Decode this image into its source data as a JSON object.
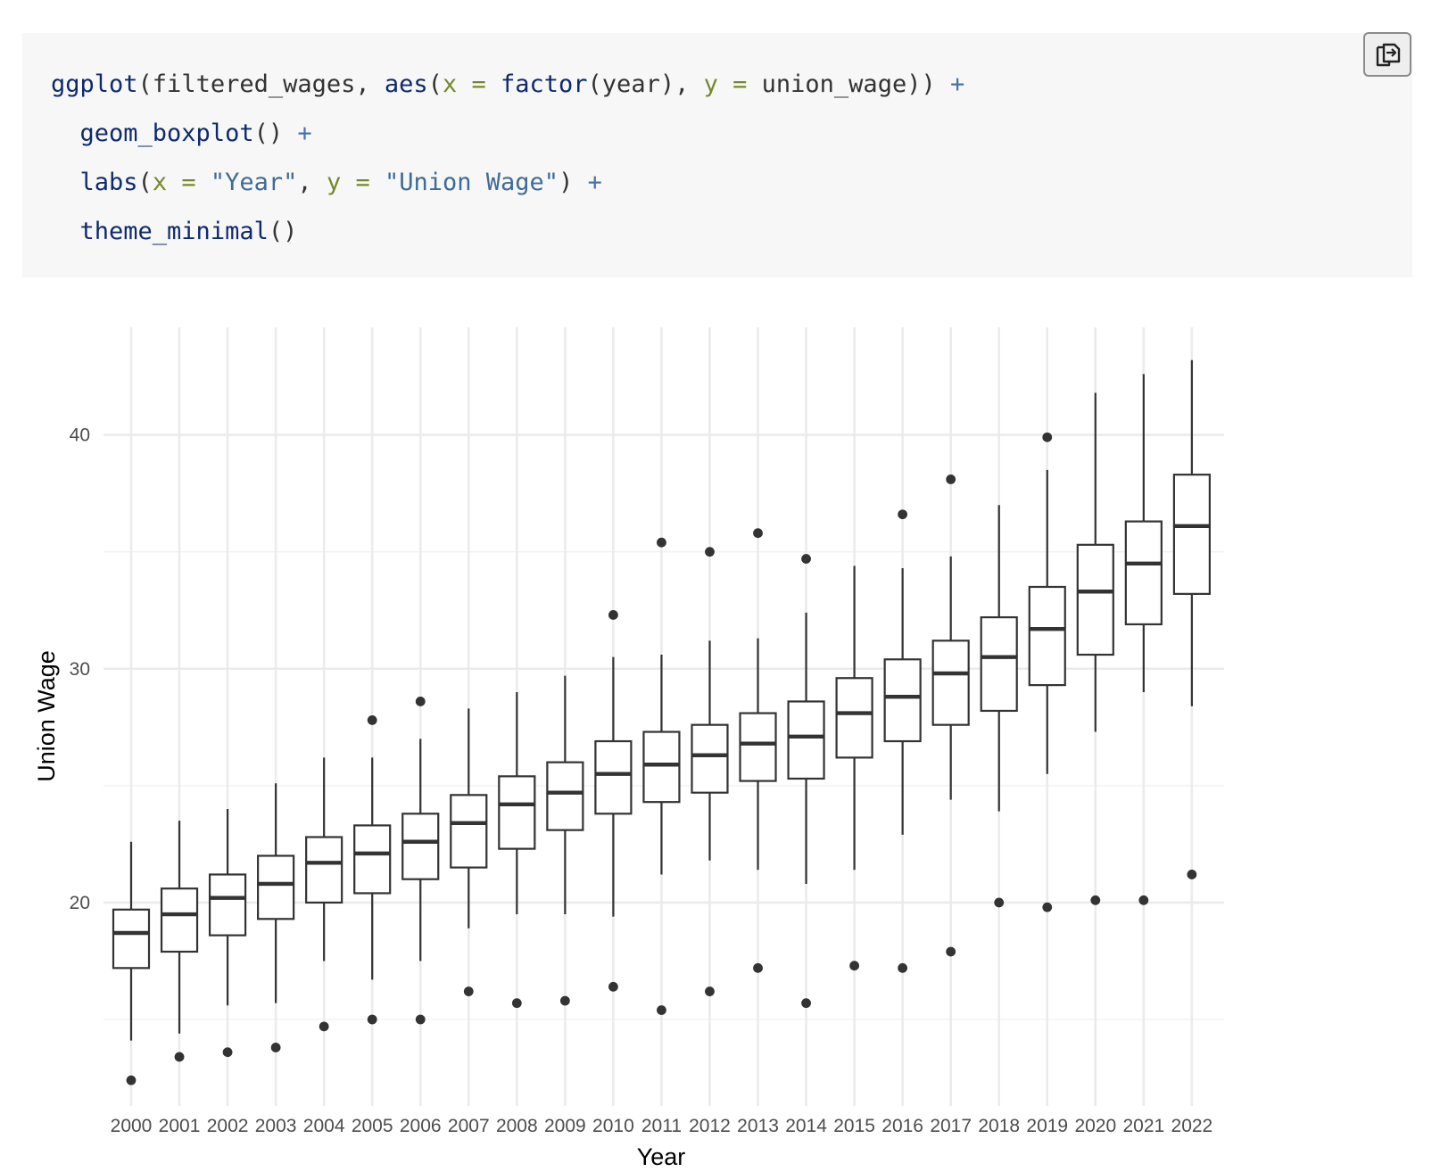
{
  "code": {
    "lines": [
      [
        {
          "cls": "fn",
          "text": "ggplot"
        },
        {
          "cls": "plain",
          "text": "(filtered_wages, "
        },
        {
          "cls": "fn",
          "text": "aes"
        },
        {
          "cls": "plain",
          "text": "("
        },
        {
          "cls": "arg",
          "text": "x"
        },
        {
          "cls": "plain",
          "text": " "
        },
        {
          "cls": "arg",
          "text": "="
        },
        {
          "cls": "plain",
          "text": " "
        },
        {
          "cls": "fn",
          "text": "factor"
        },
        {
          "cls": "plain",
          "text": "(year), "
        },
        {
          "cls": "arg",
          "text": "y"
        },
        {
          "cls": "plain",
          "text": " "
        },
        {
          "cls": "arg",
          "text": "="
        },
        {
          "cls": "plain",
          "text": " union_wage)) "
        },
        {
          "cls": "op",
          "text": "+"
        }
      ],
      [
        {
          "cls": "plain",
          "text": "  "
        },
        {
          "cls": "fn",
          "text": "geom_boxplot"
        },
        {
          "cls": "plain",
          "text": "() "
        },
        {
          "cls": "op",
          "text": "+"
        }
      ],
      [
        {
          "cls": "plain",
          "text": "  "
        },
        {
          "cls": "fn",
          "text": "labs"
        },
        {
          "cls": "plain",
          "text": "("
        },
        {
          "cls": "arg",
          "text": "x"
        },
        {
          "cls": "plain",
          "text": " "
        },
        {
          "cls": "arg",
          "text": "="
        },
        {
          "cls": "plain",
          "text": " "
        },
        {
          "cls": "str",
          "text": "\"Year\""
        },
        {
          "cls": "plain",
          "text": ", "
        },
        {
          "cls": "arg",
          "text": "y"
        },
        {
          "cls": "plain",
          "text": " "
        },
        {
          "cls": "arg",
          "text": "="
        },
        {
          "cls": "plain",
          "text": " "
        },
        {
          "cls": "str",
          "text": "\"Union Wage\""
        },
        {
          "cls": "plain",
          "text": ") "
        },
        {
          "cls": "op",
          "text": "+"
        }
      ],
      [
        {
          "cls": "plain",
          "text": "  "
        },
        {
          "cls": "fn",
          "text": "theme_minimal"
        },
        {
          "cls": "plain",
          "text": "()"
        }
      ]
    ]
  },
  "copy_button": {
    "icon": "copy-icon"
  },
  "chart_data": {
    "type": "boxplot",
    "xlabel": "Year",
    "ylabel": "Union Wage",
    "ylim": [
      11.3,
      44.6
    ],
    "y_ticks": [
      20,
      30,
      40
    ],
    "y_minor_ticks": [
      15,
      25,
      35
    ],
    "grid": true,
    "categories": [
      "2000",
      "2001",
      "2002",
      "2003",
      "2004",
      "2005",
      "2006",
      "2007",
      "2008",
      "2009",
      "2010",
      "2011",
      "2012",
      "2013",
      "2014",
      "2015",
      "2016",
      "2017",
      "2018",
      "2019",
      "2020",
      "2021",
      "2022"
    ],
    "boxes": [
      {
        "lower_whisker": 14.1,
        "q1": 17.2,
        "median": 18.7,
        "q3": 19.7,
        "upper_whisker": 22.6,
        "outliers": [
          12.4
        ]
      },
      {
        "lower_whisker": 14.4,
        "q1": 17.9,
        "median": 19.5,
        "q3": 20.6,
        "upper_whisker": 23.5,
        "outliers": [
          13.4
        ]
      },
      {
        "lower_whisker": 15.6,
        "q1": 18.6,
        "median": 20.2,
        "q3": 21.2,
        "upper_whisker": 24.0,
        "outliers": [
          13.6
        ]
      },
      {
        "lower_whisker": 15.7,
        "q1": 19.3,
        "median": 20.8,
        "q3": 22.0,
        "upper_whisker": 25.1,
        "outliers": [
          13.8
        ]
      },
      {
        "lower_whisker": 17.5,
        "q1": 20.0,
        "median": 21.7,
        "q3": 22.8,
        "upper_whisker": 26.2,
        "outliers": [
          14.7
        ]
      },
      {
        "lower_whisker": 16.7,
        "q1": 20.4,
        "median": 22.1,
        "q3": 23.3,
        "upper_whisker": 26.2,
        "outliers": [
          15.0,
          27.8
        ]
      },
      {
        "lower_whisker": 17.5,
        "q1": 21.0,
        "median": 22.6,
        "q3": 23.8,
        "upper_whisker": 27.0,
        "outliers": [
          15.0,
          28.6
        ]
      },
      {
        "lower_whisker": 18.9,
        "q1": 21.5,
        "median": 23.4,
        "q3": 24.6,
        "upper_whisker": 28.3,
        "outliers": [
          16.2
        ]
      },
      {
        "lower_whisker": 19.5,
        "q1": 22.3,
        "median": 24.2,
        "q3": 25.4,
        "upper_whisker": 29.0,
        "outliers": [
          15.7
        ]
      },
      {
        "lower_whisker": 19.5,
        "q1": 23.1,
        "median": 24.7,
        "q3": 26.0,
        "upper_whisker": 29.7,
        "outliers": [
          15.8
        ]
      },
      {
        "lower_whisker": 19.4,
        "q1": 23.8,
        "median": 25.5,
        "q3": 26.9,
        "upper_whisker": 30.5,
        "outliers": [
          16.4,
          32.3
        ]
      },
      {
        "lower_whisker": 21.2,
        "q1": 24.3,
        "median": 25.9,
        "q3": 27.3,
        "upper_whisker": 30.6,
        "outliers": [
          15.4,
          35.4
        ]
      },
      {
        "lower_whisker": 21.8,
        "q1": 24.7,
        "median": 26.3,
        "q3": 27.6,
        "upper_whisker": 31.2,
        "outliers": [
          16.2,
          35.0
        ]
      },
      {
        "lower_whisker": 21.4,
        "q1": 25.2,
        "median": 26.8,
        "q3": 28.1,
        "upper_whisker": 31.3,
        "outliers": [
          17.2,
          35.8
        ]
      },
      {
        "lower_whisker": 20.8,
        "q1": 25.3,
        "median": 27.1,
        "q3": 28.6,
        "upper_whisker": 32.4,
        "outliers": [
          15.7,
          34.7
        ]
      },
      {
        "lower_whisker": 21.4,
        "q1": 26.2,
        "median": 28.1,
        "q3": 29.6,
        "upper_whisker": 34.4,
        "outliers": [
          17.3
        ]
      },
      {
        "lower_whisker": 22.9,
        "q1": 26.9,
        "median": 28.8,
        "q3": 30.4,
        "upper_whisker": 34.3,
        "outliers": [
          17.2,
          36.6
        ]
      },
      {
        "lower_whisker": 24.4,
        "q1": 27.6,
        "median": 29.8,
        "q3": 31.2,
        "upper_whisker": 34.8,
        "outliers": [
          17.9,
          38.1
        ]
      },
      {
        "lower_whisker": 23.9,
        "q1": 28.2,
        "median": 30.5,
        "q3": 32.2,
        "upper_whisker": 37.0,
        "outliers": [
          20.0
        ]
      },
      {
        "lower_whisker": 25.5,
        "q1": 29.3,
        "median": 31.7,
        "q3": 33.5,
        "upper_whisker": 38.5,
        "outliers": [
          19.8,
          39.9
        ]
      },
      {
        "lower_whisker": 27.3,
        "q1": 30.6,
        "median": 33.3,
        "q3": 35.3,
        "upper_whisker": 41.8,
        "outliers": [
          20.1
        ]
      },
      {
        "lower_whisker": 29.0,
        "q1": 31.9,
        "median": 34.5,
        "q3": 36.3,
        "upper_whisker": 42.6,
        "outliers": [
          20.1
        ]
      },
      {
        "lower_whisker": 28.4,
        "q1": 33.2,
        "median": 36.1,
        "q3": 38.3,
        "upper_whisker": 43.2,
        "outliers": [
          21.2
        ]
      }
    ]
  }
}
